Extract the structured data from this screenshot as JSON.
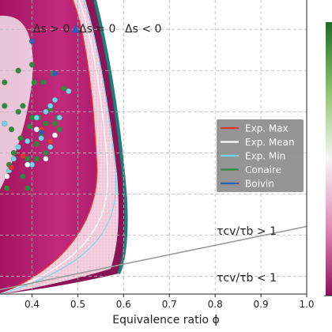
{
  "chart_data": {
    "type": "scatter",
    "xlabel": "Equivalence ratio ϕ",
    "x_ticks": [
      0.4,
      0.5,
      0.6,
      0.7,
      0.8,
      0.9,
      1.0
    ],
    "x_tick_labels": [
      "0.4",
      "0.5",
      "0.6",
      "0.7",
      "0.8",
      "0.9",
      "1.0"
    ],
    "xlim": [
      0.33,
      1.0
    ],
    "ylim": [
      0,
      1
    ],
    "grid": true,
    "region_labels": [
      "Δs > 0",
      "Δs = 0",
      "Δs < 0"
    ],
    "zone_labels": [
      "τcv/τb > 1",
      "τcv/τb < 1"
    ],
    "legend": {
      "placement": "center-right",
      "entries": [
        {
          "name": "Exp. Max",
          "color": "#e8322c"
        },
        {
          "name": "Exp. Mean",
          "color": "#ffffff"
        },
        {
          "name": "Exp. Min",
          "color": "#6fd6ee"
        },
        {
          "name": "Conaire",
          "color": "#2e8b3c"
        },
        {
          "name": "Boivin",
          "color": "#2f5fb3"
        }
      ]
    },
    "tau_line": {
      "x": [
        0.33,
        1.0
      ],
      "y": [
        0.015,
        0.23
      ]
    },
    "series": [
      {
        "name": "Conaire",
        "color": "#2e8b3c",
        "points": [
          [
            0.34,
            0.64
          ],
          [
            0.34,
            0.72
          ],
          [
            0.35,
            0.44
          ],
          [
            0.355,
            0.56
          ],
          [
            0.36,
            0.48
          ],
          [
            0.37,
            0.62
          ],
          [
            0.37,
            0.76
          ],
          [
            0.375,
            0.53
          ],
          [
            0.38,
            0.64
          ],
          [
            0.38,
            0.4
          ],
          [
            0.39,
            0.46
          ],
          [
            0.395,
            0.57
          ],
          [
            0.4,
            0.78
          ],
          [
            0.4,
            0.6
          ],
          [
            0.405,
            0.72
          ],
          [
            0.41,
            0.51
          ],
          [
            0.42,
            0.54
          ],
          [
            0.425,
            0.72
          ],
          [
            0.43,
            0.48
          ],
          [
            0.44,
            0.63
          ],
          [
            0.445,
            0.75
          ],
          [
            0.45,
            0.58
          ],
          [
            0.455,
            0.6
          ],
          [
            0.46,
            0.56
          ],
          [
            0.47,
            0.7
          ],
          [
            0.345,
            0.36
          ],
          [
            0.39,
            0.36
          ],
          [
            0.415,
            0.6
          ],
          [
            0.43,
            0.58
          ],
          [
            0.41,
            0.46
          ]
        ]
      },
      {
        "name": "Exp. Min",
        "color": "#6fd6ee",
        "points": [
          [
            0.34,
            0.58
          ],
          [
            0.35,
            0.42
          ],
          [
            0.37,
            0.5
          ],
          [
            0.39,
            0.52
          ],
          [
            0.4,
            0.44
          ],
          [
            0.42,
            0.53
          ],
          [
            0.43,
            0.62
          ],
          [
            0.44,
            0.5
          ],
          [
            0.45,
            0.66
          ],
          [
            0.46,
            0.6
          ],
          [
            0.48,
            0.69
          ],
          [
            0.36,
            0.46
          ],
          [
            0.41,
            0.6
          ],
          [
            0.44,
            0.64
          ]
        ]
      },
      {
        "name": "Exp. Max",
        "color": "#e8322c",
        "points": [
          [
            0.355,
            0.43
          ],
          [
            0.38,
            0.47
          ],
          [
            0.42,
            0.56
          ],
          [
            0.44,
            0.52
          ]
        ]
      },
      {
        "name": "Exp. Mean",
        "color": "#ffffff",
        "points": [
          [
            0.345,
            0.4
          ],
          [
            0.39,
            0.44
          ],
          [
            0.41,
            0.56
          ],
          [
            0.43,
            0.46
          ],
          [
            0.45,
            0.54
          ]
        ]
      },
      {
        "name": "Boivin",
        "color": "#2f5fb3",
        "points": [
          [
            0.4,
            0.86
          ],
          [
            0.42,
            0.55
          ],
          [
            0.45,
            0.75
          ]
        ]
      }
    ],
    "boivin_triangle": [
      0.495,
      0.9
    ]
  }
}
